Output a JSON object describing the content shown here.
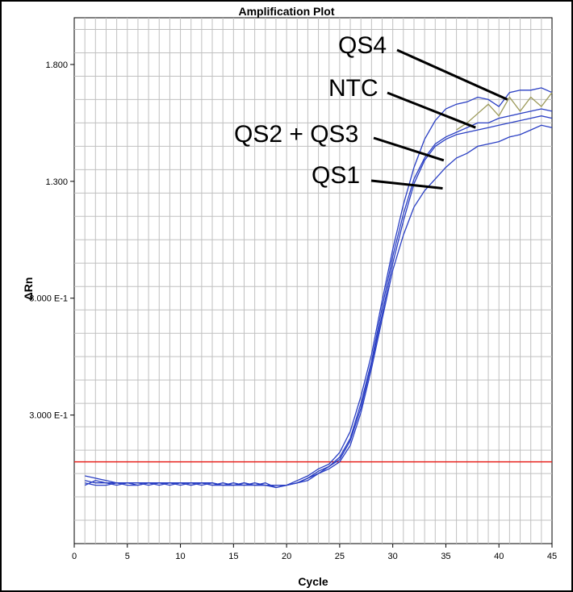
{
  "chart_data": {
    "type": "line",
    "title": "Amplification Plot",
    "xlabel": "Cycle",
    "ylabel": "ΔRn",
    "xlim": [
      0,
      45
    ],
    "ylim": [
      -0.25,
      2.0
    ],
    "grid": true,
    "x_ticks": [
      {
        "value": 0,
        "label": "0"
      },
      {
        "value": 5,
        "label": "5"
      },
      {
        "value": 10,
        "label": "10"
      },
      {
        "value": 15,
        "label": "15"
      },
      {
        "value": 20,
        "label": "20"
      },
      {
        "value": 25,
        "label": "25"
      },
      {
        "value": 30,
        "label": "30"
      },
      {
        "value": 35,
        "label": "35"
      },
      {
        "value": 40,
        "label": "40"
      },
      {
        "value": 45,
        "label": "45"
      }
    ],
    "y_ticks": [
      {
        "value": 0.3,
        "label": "3.000 E-1"
      },
      {
        "value": 0.8,
        "label": "8.000 E-1"
      },
      {
        "value": 1.3,
        "label": "1.300"
      },
      {
        "value": 1.8,
        "label": "1.800"
      }
    ],
    "threshold": {
      "value": 0.1,
      "color": "#e8211c"
    },
    "colors": {
      "series": "#2a3fc4",
      "ntc": "#9c9a5a",
      "grid": "#c0c0c0"
    },
    "x": [
      1,
      2,
      3,
      4,
      5,
      6,
      7,
      8,
      9,
      10,
      11,
      12,
      13,
      14,
      15,
      16,
      17,
      18,
      19,
      20,
      21,
      22,
      23,
      24,
      25,
      26,
      27,
      28,
      29,
      30,
      31,
      32,
      33,
      34,
      35,
      36,
      37,
      38,
      39,
      40,
      41,
      42,
      43,
      44,
      45
    ],
    "series": [
      {
        "values": [
          0.04,
          0.03,
          0.02,
          0.01,
          0.01,
          0.01,
          0.0,
          0.01,
          0.01,
          0.01,
          0.0,
          0.01,
          0.01,
          0.0,
          0.0,
          0.01,
          0.0,
          0.0,
          -0.01,
          0.0,
          0.02,
          0.04,
          0.07,
          0.09,
          0.14,
          0.23,
          0.38,
          0.56,
          0.79,
          1.01,
          1.2,
          1.36,
          1.48,
          1.56,
          1.61,
          1.63,
          1.64,
          1.66,
          1.65,
          1.62,
          1.68,
          1.69,
          1.69,
          1.7,
          1.68
        ],
        "color": "#2a3fc4"
      },
      {
        "values": [
          0.0,
          0.02,
          0.01,
          0.01,
          0.0,
          0.0,
          0.01,
          0.01,
          0.0,
          0.01,
          0.0,
          0.01,
          0.0,
          0.0,
          0.01,
          0.0,
          0.0,
          0.0,
          0.0,
          0.0,
          0.01,
          0.03,
          0.05,
          0.08,
          0.12,
          0.2,
          0.35,
          0.53,
          0.76,
          0.98,
          1.16,
          1.31,
          1.4,
          1.46,
          1.49,
          1.51,
          1.53,
          1.55,
          1.55,
          1.57,
          1.58,
          1.59,
          1.6,
          1.61,
          1.6
        ],
        "color": "#2a3fc4"
      },
      {
        "values": [
          0.02,
          0.01,
          0.01,
          0.0,
          0.01,
          0.01,
          0.01,
          0.01,
          0.01,
          0.01,
          0.01,
          0.01,
          0.0,
          0.01,
          0.0,
          0.0,
          0.01,
          0.0,
          0.0,
          0.0,
          0.01,
          0.03,
          0.06,
          0.08,
          0.11,
          0.19,
          0.33,
          0.52,
          0.73,
          0.95,
          1.13,
          1.29,
          1.39,
          1.45,
          1.48,
          1.5,
          1.51,
          1.52,
          1.53,
          1.54,
          1.55,
          1.56,
          1.57,
          1.58,
          1.57
        ],
        "color": "#2a3fc4"
      },
      {
        "values": [
          0.01,
          0.0,
          0.0,
          0.01,
          0.01,
          0.0,
          0.01,
          0.0,
          0.01,
          0.0,
          0.01,
          0.0,
          0.01,
          0.0,
          0.0,
          0.01,
          0.0,
          0.01,
          -0.01,
          0.0,
          0.01,
          0.02,
          0.05,
          0.07,
          0.1,
          0.17,
          0.31,
          0.5,
          0.71,
          0.92,
          1.07,
          1.19,
          1.26,
          1.31,
          1.36,
          1.4,
          1.42,
          1.45,
          1.46,
          1.47,
          1.49,
          1.5,
          1.52,
          1.54,
          1.53
        ],
        "color": "#2a3fc4"
      },
      {
        "values": [
          null,
          null,
          null,
          null,
          null,
          null,
          null,
          null,
          null,
          null,
          null,
          null,
          null,
          null,
          null,
          null,
          null,
          null,
          null,
          null,
          null,
          null,
          null,
          null,
          null,
          null,
          null,
          null,
          null,
          null,
          null,
          null,
          null,
          null,
          null,
          1.52,
          1.55,
          1.59,
          1.63,
          1.58,
          1.66,
          1.6,
          1.66,
          1.62,
          1.68
        ],
        "color": "#9c9a5a"
      }
    ],
    "annotations": [
      {
        "label": "QS4",
        "tip_x": 40.8,
        "tip_y": 1.65
      },
      {
        "label": "NTC",
        "tip_x": 37.8,
        "tip_y": 1.53
      },
      {
        "label": "QS2 + QS3",
        "tip_x": 34.8,
        "tip_y": 1.39
      },
      {
        "label": "QS1",
        "tip_x": 34.7,
        "tip_y": 1.27
      }
    ]
  }
}
